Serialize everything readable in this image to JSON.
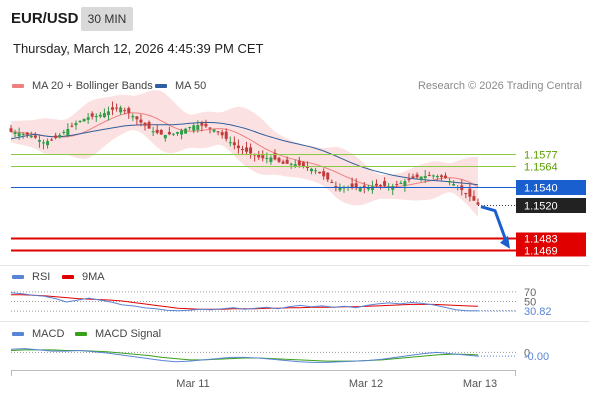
{
  "header": {
    "symbol": "EUR/USD",
    "timeframe": "30 MIN",
    "datetime": "Thursday, March 12, 2026 4:45:39 PM CET",
    "credit": "Research © 2026 Trading Central"
  },
  "legend": {
    "bollinger": "MA 20 + Bollinger Bands",
    "ma50": "MA 50",
    "rsi": "RSI",
    "rsi_ma": "9MA",
    "macd": "MACD",
    "macd_signal": "MACD Signal"
  },
  "colors": {
    "bollinger": "#f07f7f",
    "ma50": "#2f5f9e",
    "rsi": "#5a85d6",
    "rsi_ma": "#e00000",
    "macd": "#5a85d6",
    "macd_signal": "#3aa018",
    "support": "#e00000",
    "pivot": "#1a5fd0",
    "resistance": "#8cc840",
    "price_tag": "#222222"
  },
  "chart_data": [
    {
      "type": "candlestick",
      "title": "EUR/USD",
      "x_ticks": [
        "Mar 11",
        "Mar 12",
        "Mar 13"
      ],
      "ylim": [
        1.146,
        1.164
      ],
      "overlays": [
        "MA 20 + Bollinger Bands",
        "MA 50"
      ],
      "levels": [
        {
          "label": "1.1577",
          "value": 1.1577,
          "kind": "resistance"
        },
        {
          "label": "1.1564",
          "value": 1.1564,
          "kind": "resistance"
        },
        {
          "label": "1.1540",
          "value": 1.154,
          "kind": "pivot"
        },
        {
          "label": "1.1483",
          "value": 1.1483,
          "kind": "support"
        },
        {
          "label": "1.1469",
          "value": 1.1469,
          "kind": "support"
        }
      ],
      "last_price": {
        "label": "1.1520",
        "value": 1.152
      },
      "close_path": [
        1.1602,
        1.16,
        1.1597,
        1.159,
        1.1594,
        1.1603,
        1.1612,
        1.1618,
        1.162,
        1.1625,
        1.163,
        1.1622,
        1.1612,
        1.1603,
        1.1598,
        1.16,
        1.1605,
        1.161,
        1.1608,
        1.1603,
        1.1592,
        1.1583,
        1.1578,
        1.1572,
        1.1573,
        1.1566,
        1.1566,
        1.1563,
        1.1559,
        1.155,
        1.154,
        1.154,
        1.1539,
        1.154,
        1.1542,
        1.154,
        1.1545,
        1.155,
        1.1552,
        1.1553,
        1.155,
        1.1541,
        1.1532,
        1.152
      ],
      "forecast": {
        "from": 1.152,
        "to": 1.1476,
        "direction": "down"
      }
    },
    {
      "type": "line",
      "title": "RSI",
      "series": [
        {
          "name": "RSI",
          "values": [
            68,
            66,
            63,
            61,
            56,
            49,
            53,
            57,
            53,
            49,
            43,
            41,
            37,
            35,
            32,
            31,
            32,
            34,
            33,
            35,
            37,
            34,
            36,
            38,
            35,
            39,
            42,
            39,
            41,
            38,
            40,
            37,
            42,
            45,
            47,
            45,
            48,
            46,
            43,
            38,
            33,
            31,
            30.82
          ]
        },
        {
          "name": "9MA",
          "values": [
            64,
            64,
            63,
            62,
            60,
            58,
            56,
            55,
            54,
            53,
            51,
            48,
            45,
            42,
            39,
            36,
            35,
            34,
            34,
            34,
            35,
            35,
            35,
            36,
            36,
            37,
            37,
            38,
            38,
            38,
            39,
            39,
            40,
            41,
            42,
            43,
            44,
            44,
            44,
            43,
            42,
            41,
            40
          ]
        }
      ],
      "levels": [
        70,
        50,
        30
      ],
      "tick_labels": [
        "70",
        "50"
      ],
      "last_value_label": "30.82",
      "ylim": [
        20,
        80
      ]
    },
    {
      "type": "line",
      "title": "MACD",
      "series": [
        {
          "name": "MACD",
          "values": [
            0.0005,
            0.0006,
            0.0004,
            0.0002,
            0.0002,
            0.0003,
            0.0001,
            -0.0001,
            -0.0004,
            -0.0007,
            -0.001,
            -0.0013,
            -0.0015,
            -0.0014,
            -0.0012,
            -0.001,
            -0.0008,
            -0.0008,
            -0.0009,
            -0.0011,
            -0.0013,
            -0.0015,
            -0.0016,
            -0.0016,
            -0.0015,
            -0.0014,
            -0.0013,
            -0.0011,
            -0.0008,
            -0.0005,
            -0.0002,
            0.0,
            -0.0002,
            -0.0004,
            -0.0006
          ]
        },
        {
          "name": "MACD Signal",
          "values": [
            0.0003,
            0.0004,
            0.0004,
            0.0004,
            0.0003,
            0.0003,
            0.0002,
            0.0001,
            -0.0001,
            -0.0003,
            -0.0005,
            -0.0008,
            -0.001,
            -0.0012,
            -0.0012,
            -0.0011,
            -0.001,
            -0.0009,
            -0.0009,
            -0.001,
            -0.0011,
            -0.0012,
            -0.0013,
            -0.0014,
            -0.0014,
            -0.0014,
            -0.0013,
            -0.0012,
            -0.001,
            -0.0008,
            -0.0006,
            -0.0004,
            -0.0003,
            -0.0003,
            -0.0004
          ]
        }
      ],
      "zero_label": "0",
      "last_value_label": "-0.00",
      "ylim": [
        -0.0025,
        0.0015
      ]
    }
  ]
}
